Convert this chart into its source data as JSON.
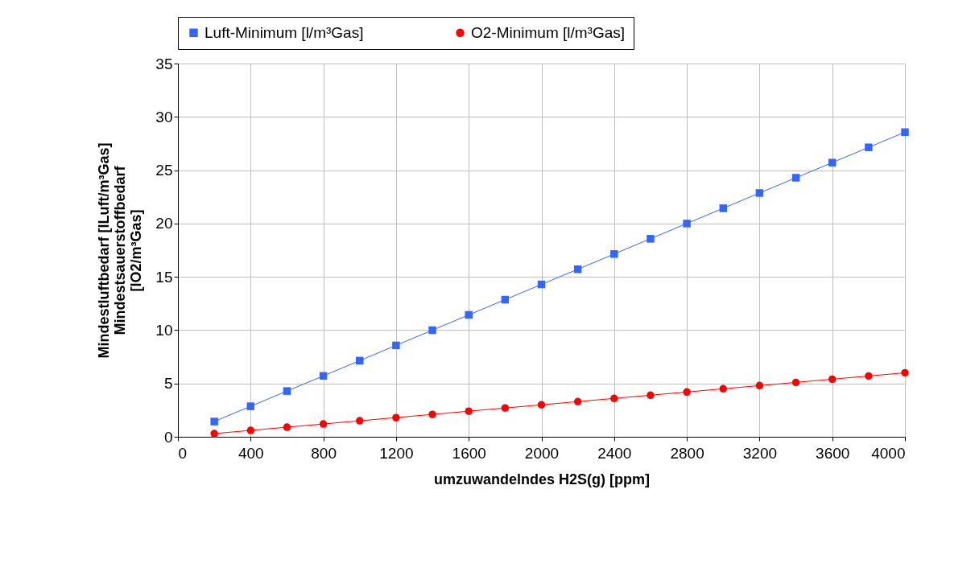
{
  "chart_data": {
    "type": "line",
    "xlabel": "umzuwandelndes H2S(g) [ppm]",
    "ylabel": "Mindestluftbedarf [lLuft/m³Gas]\nMindestsauerstoffbedarf\n[lO2/m³Gas]",
    "x": [
      200,
      400,
      600,
      800,
      1000,
      1200,
      1400,
      1600,
      1800,
      2000,
      2200,
      2400,
      2600,
      2800,
      3000,
      3200,
      3400,
      3600,
      3800,
      4000
    ],
    "series": [
      {
        "name": "Luft-Minimum [l/m³Gas]",
        "color": "#3366ff",
        "marker": "square",
        "values": [
          1.43,
          2.86,
          4.29,
          5.71,
          7.14,
          8.57,
          10.0,
          11.43,
          12.86,
          14.29,
          15.71,
          17.14,
          18.57,
          20.0,
          21.43,
          22.86,
          24.29,
          25.71,
          27.14,
          28.57
        ]
      },
      {
        "name": "O2-Minimum [l/m³Gas]",
        "color": "#ff0000",
        "marker": "circle",
        "values": [
          0.3,
          0.6,
          0.9,
          1.2,
          1.5,
          1.8,
          2.1,
          2.4,
          2.7,
          3.0,
          3.3,
          3.6,
          3.9,
          4.2,
          4.5,
          4.8,
          5.1,
          5.4,
          5.7,
          6.0
        ]
      }
    ],
    "xlim": [
      0,
      4000
    ],
    "xticks": [
      0,
      400,
      800,
      1200,
      1600,
      2000,
      2400,
      2800,
      3200,
      3600,
      4000
    ],
    "ylim": [
      0,
      35
    ],
    "yticks": [
      0,
      5,
      10,
      15,
      20,
      25,
      30,
      35
    ],
    "grid": true,
    "legend": "top",
    "line_style": "solid"
  }
}
